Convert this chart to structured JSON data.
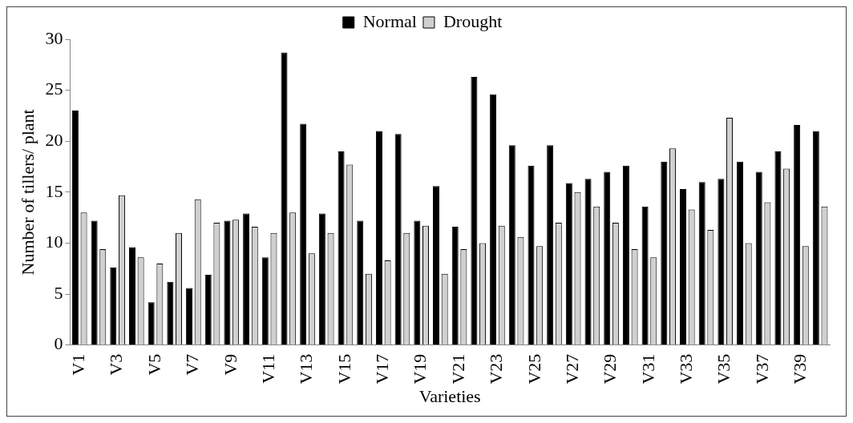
{
  "chart_data": {
    "type": "bar",
    "xlabel": "Varieties",
    "ylabel": "Number of tillers/ plant",
    "categories": [
      "V1",
      null,
      "V3",
      null,
      "V5",
      null,
      "V7",
      null,
      "V9",
      null,
      "V11",
      null,
      "V13",
      null,
      "V15",
      null,
      "V17",
      null,
      "V19",
      null,
      "V21",
      null,
      "V23",
      null,
      "V25",
      null,
      "V27",
      null,
      "V29",
      null,
      "V31",
      null,
      "V33",
      null,
      "V35",
      null,
      "V37",
      null,
      "V39",
      null
    ],
    "series": [
      {
        "name": "Normal",
        "color": "#000000",
        "values": [
          23,
          12.2,
          7.6,
          9.6,
          4.2,
          6.2,
          5.6,
          6.9,
          12.2,
          12.9,
          8.6,
          28.7,
          21.7,
          12.9,
          19,
          12.2,
          21,
          20.7,
          12.2,
          15.6,
          11.6,
          26.3,
          24.6,
          19.6,
          17.6,
          19.6,
          15.9,
          16.3,
          17,
          17.6,
          13.6,
          18,
          15.3,
          16,
          16.3,
          18,
          17,
          19,
          21.6,
          21
        ]
      },
      {
        "name": "Drought",
        "color": "#d0d0d0",
        "values": [
          13,
          9.4,
          14.7,
          8.6,
          8,
          11,
          14.3,
          12,
          12.3,
          11.6,
          11,
          13,
          9,
          11,
          17.7,
          7,
          8.3,
          11,
          11.7,
          7,
          9.4,
          10,
          11.7,
          10.6,
          9.7,
          12,
          15,
          13.6,
          12,
          9.4,
          8.6,
          19.3,
          13.3,
          11.3,
          22.3,
          10,
          14,
          17.3,
          9.7,
          13.6
        ]
      }
    ],
    "ylim": [
      0,
      30
    ],
    "yticks": [
      0,
      5,
      10,
      15,
      20,
      25,
      30
    ],
    "grid": false,
    "legend": "top"
  }
}
